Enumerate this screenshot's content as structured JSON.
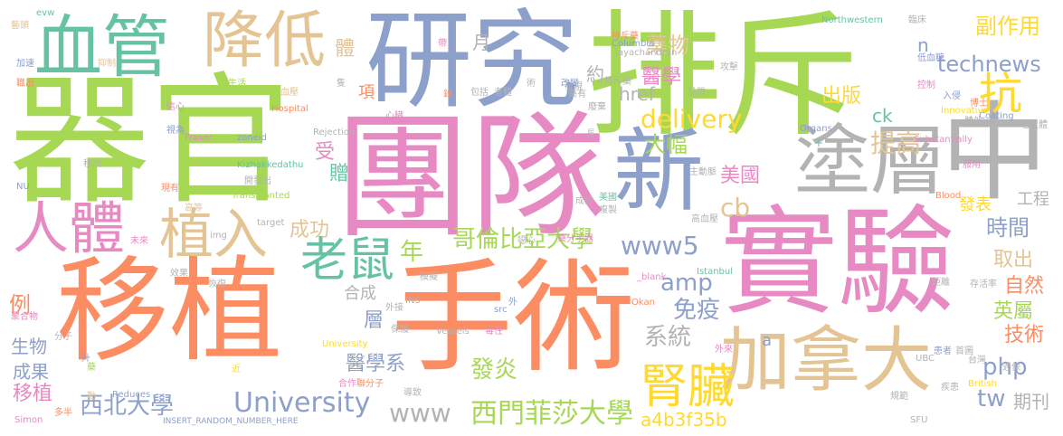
{
  "colors": {
    "green": "#a6d854",
    "orange": "#fc8d62",
    "pink": "#e78ac3",
    "blue": "#8da0cb",
    "tan": "#e5c494",
    "teal": "#66c2a5",
    "yellow": "#ffd92f",
    "gray": "#b3b3b3"
  },
  "words": [
    {
      "text": "器官",
      "c": "green"
    },
    {
      "text": "團隊",
      "c": "pink"
    },
    {
      "text": "排斥",
      "c": "green"
    },
    {
      "text": "研究",
      "c": "blue"
    },
    {
      "text": "移植",
      "c": "orange"
    },
    {
      "text": "手術",
      "c": "orange"
    },
    {
      "text": "實驗",
      "c": "pink"
    },
    {
      "text": "中",
      "c": "gray"
    },
    {
      "text": "血管",
      "c": "teal"
    },
    {
      "text": "降低",
      "c": "tan"
    },
    {
      "text": "新",
      "c": "blue"
    },
    {
      "text": "塗層",
      "c": "gray"
    },
    {
      "text": "加拿大",
      "c": "tan"
    },
    {
      "text": "植入",
      "c": "tan"
    },
    {
      "text": "人體",
      "c": "pink"
    },
    {
      "text": "老鼠",
      "c": "teal"
    },
    {
      "text": "抗",
      "c": "yellow"
    },
    {
      "text": "腎臟",
      "c": "yellow"
    },
    {
      "text": "University",
      "c": "blue"
    },
    {
      "text": "西門菲莎大學",
      "c": "green"
    },
    {
      "text": "technews",
      "c": "blue"
    },
    {
      "text": "delivery",
      "c": "yellow"
    },
    {
      "text": "哥倫比亞大學",
      "c": "green"
    },
    {
      "text": "www5",
      "c": "blue"
    },
    {
      "text": "藥物",
      "c": "tan"
    },
    {
      "text": "醫學",
      "c": "pink"
    },
    {
      "text": "副作用",
      "c": "yellow"
    },
    {
      "text": "出版",
      "c": "yellow"
    },
    {
      "text": "大幅",
      "c": "green"
    },
    {
      "text": "提高",
      "c": "tan"
    },
    {
      "text": "美國",
      "c": "pink"
    },
    {
      "text": "cb",
      "c": "tan"
    },
    {
      "text": "成功",
      "c": "tan"
    },
    {
      "text": "年",
      "c": "green"
    },
    {
      "text": "amp",
      "c": "blue"
    },
    {
      "text": "免疫",
      "c": "blue"
    },
    {
      "text": "系統",
      "c": "gray"
    },
    {
      "text": "醫學系",
      "c": "blue"
    },
    {
      "text": "發炎",
      "c": "green"
    },
    {
      "text": "www",
      "c": "gray"
    },
    {
      "text": "a4b3f35b",
      "c": "yellow"
    },
    {
      "text": "php",
      "c": "blue"
    },
    {
      "text": "tw",
      "c": "blue"
    },
    {
      "text": "期刊",
      "c": "gray"
    },
    {
      "text": "英屬",
      "c": "green"
    },
    {
      "text": "技術",
      "c": "orange"
    },
    {
      "text": "自然",
      "c": "orange"
    },
    {
      "text": "時間",
      "c": "blue"
    },
    {
      "text": "取出",
      "c": "tan"
    },
    {
      "text": "發表",
      "c": "yellow"
    },
    {
      "text": "工程",
      "c": "gray"
    },
    {
      "text": "西北大學",
      "c": "blue"
    },
    {
      "text": "移植",
      "c": "pink"
    },
    {
      "text": "成果",
      "c": "blue"
    },
    {
      "text": "生物",
      "c": "blue"
    },
    {
      "text": "例",
      "c": "orange"
    },
    {
      "text": "合成",
      "c": "gray"
    },
    {
      "text": "層",
      "c": "blue"
    },
    {
      "text": "href",
      "c": "gray"
    },
    {
      "text": "約",
      "c": "gray"
    },
    {
      "text": "月",
      "c": "gray"
    },
    {
      "text": "體",
      "c": "tan"
    },
    {
      "text": "項",
      "c": "orange"
    },
    {
      "text": "受",
      "c": "pink"
    },
    {
      "text": "贈",
      "c": "teal"
    },
    {
      "text": "ck",
      "c": "teal"
    },
    {
      "text": "n",
      "c": "blue"
    },
    {
      "text": "a",
      "c": "blue"
    },
    {
      "text": "evw",
      "c": "teal"
    },
    {
      "text": "藝頭",
      "c": "tan"
    },
    {
      "text": "加速",
      "c": "blue"
    },
    {
      "text": "職出",
      "c": "orange"
    },
    {
      "text": "抑制",
      "c": "tan"
    },
    {
      "text": "生活",
      "c": "green"
    },
    {
      "text": "血壓",
      "c": "tan"
    },
    {
      "text": "隻",
      "c": "gray"
    },
    {
      "text": "信心",
      "c": "pink"
    },
    {
      "text": "視為",
      "c": "blue"
    },
    {
      "text": "移出",
      "c": "gray"
    },
    {
      "text": "Hospital",
      "c": "orange"
    },
    {
      "text": "Fraser",
      "c": "pink"
    },
    {
      "text": "zoneid",
      "c": "blue"
    },
    {
      "text": "Rejection",
      "c": "gray"
    },
    {
      "text": "Kizhakkedathu",
      "c": "teal"
    },
    {
      "text": "開發出",
      "c": "gray"
    },
    {
      "text": "Transplanted",
      "c": "green"
    },
    {
      "text": "NU",
      "c": "blue"
    },
    {
      "text": "現有",
      "c": "orange"
    },
    {
      "text": "高等",
      "c": "tan"
    },
    {
      "text": "未來",
      "c": "pink"
    },
    {
      "text": "target",
      "c": "gray"
    },
    {
      "text": "img",
      "c": "gray"
    },
    {
      "text": "效果",
      "c": "gray"
    },
    {
      "text": "恢復",
      "c": "gray"
    },
    {
      "text": "聚合物",
      "c": "pink"
    },
    {
      "text": "分子",
      "c": "gray"
    },
    {
      "text": "升",
      "c": "blue"
    },
    {
      "text": "Reduces",
      "c": "blue"
    },
    {
      "text": "多半",
      "c": "orange"
    },
    {
      "text": "Simon",
      "c": "pink"
    },
    {
      "text": "INSERT_RANDOM_NUMBER_HERE",
      "c": "blue"
    },
    {
      "text": "合作",
      "c": "pink"
    },
    {
      "text": "聯分子",
      "c": "orange"
    },
    {
      "text": "導致",
      "c": "gray"
    },
    {
      "text": "保護",
      "c": "gray"
    },
    {
      "text": "Vessels",
      "c": "gray"
    },
    {
      "text": "INS",
      "c": "gray"
    },
    {
      "text": "外接",
      "c": "gray"
    },
    {
      "text": "University",
      "c": "yellow"
    },
    {
      "text": "毒性",
      "c": "pink"
    },
    {
      "text": "src",
      "c": "blue"
    },
    {
      "text": "外",
      "c": "blue"
    },
    {
      "text": "Okan",
      "c": "orange"
    },
    {
      "text": "Istanbul",
      "c": "teal"
    },
    {
      "text": "_blank",
      "c": "pink"
    },
    {
      "text": "模擬",
      "c": "gray"
    },
    {
      "text": "噁心",
      "c": "gray"
    },
    {
      "text": "藥分子器",
      "c": "pink"
    },
    {
      "text": "成分",
      "c": "gray"
    },
    {
      "text": "美國",
      "c": "teal"
    },
    {
      "text": "複製",
      "c": "gray"
    },
    {
      "text": "主動脈",
      "c": "gray"
    },
    {
      "text": "高血壓",
      "c": "gray"
    },
    {
      "text": "排斥藥",
      "c": "gray"
    },
    {
      "text": "Northwestern",
      "c": "teal"
    },
    {
      "text": "臨床",
      "c": "gray"
    },
    {
      "text": "低血糖",
      "c": "blue"
    },
    {
      "text": "博士",
      "c": "orange"
    },
    {
      "text": "控制",
      "c": "pink"
    },
    {
      "text": "入侵",
      "c": "blue"
    },
    {
      "text": "Innovative",
      "c": "yellow"
    },
    {
      "text": "體外",
      "c": "gray"
    },
    {
      "text": "Columbia",
      "c": "blue"
    },
    {
      "text": "Jayachandran",
      "c": "gray"
    },
    {
      "text": "包括",
      "c": "gray"
    },
    {
      "text": "者體",
      "c": "gray"
    },
    {
      "text": "術",
      "c": "gray"
    },
    {
      "text": "心臟",
      "c": "pink"
    },
    {
      "text": "長",
      "c": "gray"
    },
    {
      "text": "發現",
      "c": "gray"
    },
    {
      "text": "廢棄",
      "c": "gray"
    },
    {
      "text": "藥有",
      "c": "gray"
    },
    {
      "text": "Substantially",
      "c": "pink"
    },
    {
      "text": "Coating",
      "c": "blue"
    },
    {
      "text": "老鼠體",
      "c": "gray"
    },
    {
      "text": "Organs",
      "c": "blue"
    },
    {
      "text": "服用",
      "c": "pink"
    },
    {
      "text": "Blood",
      "c": "orange"
    },
    {
      "text": "存活率",
      "c": "gray"
    },
    {
      "text": "距離",
      "c": "gray"
    },
    {
      "text": "British",
      "c": "yellow"
    },
    {
      "text": "台灣",
      "c": "gray"
    },
    {
      "text": "UBC",
      "c": "gray"
    },
    {
      "text": "患者",
      "c": "blue"
    },
    {
      "text": "SFU",
      "c": "gray"
    },
    {
      "text": "規範",
      "c": "gray"
    },
    {
      "text": "外來",
      "c": "pink"
    },
    {
      "text": "疾患",
      "c": "gray"
    },
    {
      "text": "首圖",
      "c": "gray"
    },
    {
      "text": "遇保",
      "c": "gray"
    },
    {
      "text": "攻擊",
      "c": "gray"
    },
    {
      "text": "品質",
      "c": "gray"
    },
    {
      "text": "改變",
      "c": "blue"
    },
    {
      "text": "帶",
      "c": "pink"
    },
    {
      "text": "錄",
      "c": "orange"
    },
    {
      "text": "+",
      "c": "teal"
    },
    {
      "text": "排斥藥",
      "c": "orange"
    },
    {
      "text": "藥",
      "c": "green"
    },
    {
      "text": "近",
      "c": "yellow"
    },
    {
      "text": "勤",
      "c": "tan"
    }
  ]
}
